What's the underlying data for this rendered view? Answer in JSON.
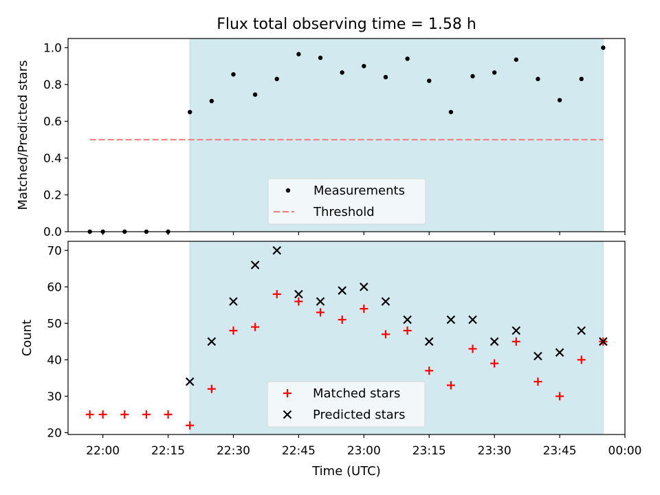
{
  "chart_data": [
    {
      "type": "scatter",
      "title": "Flux total observing time = 1.58 h",
      "xlabel": "",
      "ylabel": "Matched/Predicted stars",
      "xlim": [
        "21:52",
        "00:00"
      ],
      "ylim": [
        0,
        1.05
      ],
      "yticks": [
        "0.0",
        "0.2",
        "0.4",
        "0.6",
        "0.8",
        "1.0"
      ],
      "highlight_span": {
        "x0": "22:20",
        "x1": "23:55",
        "color": "#d3e9f0"
      },
      "threshold": {
        "y": 0.5,
        "x0": "21:57",
        "x1": "23:55",
        "color": "#f08080"
      },
      "legend": {
        "position": "lower center",
        "items": [
          {
            "label": "Measurements",
            "marker": "dot",
            "color": "#000000"
          },
          {
            "label": "Threshold",
            "marker": "dashed-line",
            "color": "#f08080"
          }
        ]
      },
      "series": [
        {
          "name": "Measurements",
          "color": "#000000",
          "x": [
            "21:57",
            "22:00",
            "22:05",
            "22:10",
            "22:15",
            "22:20",
            "22:25",
            "22:30",
            "22:35",
            "22:40",
            "22:45",
            "22:50",
            "22:55",
            "23:00",
            "23:05",
            "23:10",
            "23:15",
            "23:20",
            "23:25",
            "23:30",
            "23:35",
            "23:40",
            "23:45",
            "23:50",
            "23:55"
          ],
          "y": [
            0,
            0,
            0,
            0,
            0,
            0.65,
            0.71,
            0.855,
            0.745,
            0.83,
            0.965,
            0.945,
            0.865,
            0.9,
            0.84,
            0.94,
            0.82,
            0.65,
            0.845,
            0.865,
            0.935,
            0.83,
            0.715,
            0.83,
            1.0
          ]
        }
      ]
    },
    {
      "type": "scatter",
      "xlabel": "Time (UTC)",
      "ylabel": "Count",
      "xlim": [
        "21:52",
        "00:00"
      ],
      "ylim": [
        19.5,
        72.5
      ],
      "xticks": [
        "22:00",
        "22:15",
        "22:30",
        "22:45",
        "23:00",
        "23:15",
        "23:30",
        "23:45",
        "00:00"
      ],
      "yticks": [
        "20",
        "30",
        "40",
        "50",
        "60",
        "70"
      ],
      "highlight_span": {
        "x0": "22:20",
        "x1": "23:55",
        "color": "#d3e9f0"
      },
      "legend": {
        "position": "lower center",
        "items": [
          {
            "label": "Matched stars",
            "marker": "plus",
            "color": "#ff0000"
          },
          {
            "label": "Predicted stars",
            "marker": "x",
            "color": "#000000"
          }
        ]
      },
      "series": [
        {
          "name": "Matched stars",
          "color": "#ff0000",
          "marker": "plus",
          "x": [
            "21:57",
            "22:00",
            "22:05",
            "22:10",
            "22:15",
            "22:20",
            "22:25",
            "22:30",
            "22:35",
            "22:40",
            "22:45",
            "22:50",
            "22:55",
            "23:00",
            "23:05",
            "23:10",
            "23:15",
            "23:20",
            "23:25",
            "23:30",
            "23:35",
            "23:40",
            "23:45",
            "23:50",
            "23:55"
          ],
          "y": [
            25,
            25,
            25,
            25,
            25,
            22,
            32,
            48,
            49,
            58,
            56,
            53,
            51,
            54,
            47,
            48,
            37,
            33,
            43,
            39,
            45,
            34,
            30,
            40,
            45
          ]
        },
        {
          "name": "Predicted stars",
          "color": "#000000",
          "marker": "x",
          "x": [
            "22:20",
            "22:25",
            "22:30",
            "22:35",
            "22:40",
            "22:45",
            "22:50",
            "22:55",
            "23:00",
            "23:05",
            "23:10",
            "23:15",
            "23:20",
            "23:25",
            "23:30",
            "23:35",
            "23:40",
            "23:45",
            "23:50",
            "23:55"
          ],
          "y": [
            34,
            45,
            56,
            66,
            70,
            58,
            56,
            59,
            60,
            56,
            51,
            45,
            51,
            51,
            45,
            48,
            41,
            42,
            48,
            45
          ]
        }
      ]
    }
  ]
}
